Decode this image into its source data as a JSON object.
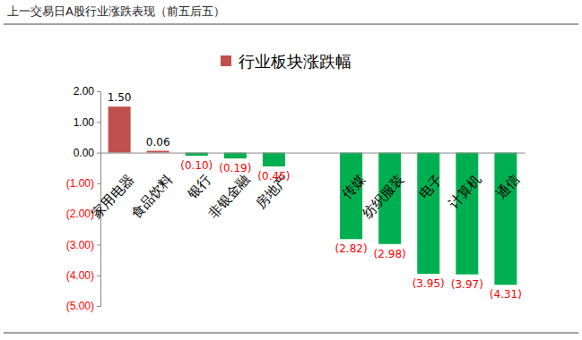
{
  "chart_data": {
    "type": "bar",
    "title": "上一交易日A股行业涨跌表现（前五后五）",
    "categories": [
      "家用电器",
      "食品饮料",
      "银行",
      "非银金融",
      "房地产",
      null,
      "传媒",
      "纺织服装",
      "电子",
      "计算机",
      "通信"
    ],
    "series": [
      {
        "name": "行业板块涨跌幅",
        "color": "#c0504d",
        "colors": [
          "#c0504d",
          "#c0504d",
          "#00b050",
          "#00b050",
          "#00b050",
          null,
          "#00b050",
          "#00b050",
          "#00b050",
          "#00b050",
          "#00b050"
        ],
        "values": [
          1.5,
          0.06,
          -0.1,
          -0.19,
          -0.45,
          null,
          -2.82,
          -2.98,
          -3.95,
          -3.97,
          -4.31
        ],
        "value_labels": [
          "1.50",
          "0.06",
          "(0.10)",
          "(0.19)",
          "(0.45)",
          null,
          "(2.82)",
          "(2.98)",
          "(3.95)",
          "(3.97)",
          "(4.31)"
        ]
      }
    ],
    "ylim": [
      -5,
      2
    ],
    "yticks": [
      {
        "value": 2,
        "label": "2.00"
      },
      {
        "value": 1,
        "label": "1.00"
      },
      {
        "value": 0,
        "label": "0.00"
      },
      {
        "value": -1,
        "label": "(1.00)"
      },
      {
        "value": -2,
        "label": "(2.00)"
      },
      {
        "value": -3,
        "label": "(3.00)"
      },
      {
        "value": -4,
        "label": "(4.00)"
      },
      {
        "value": -5,
        "label": "(5.00)"
      }
    ],
    "grid": false,
    "legend": "top",
    "data_labels": true
  }
}
